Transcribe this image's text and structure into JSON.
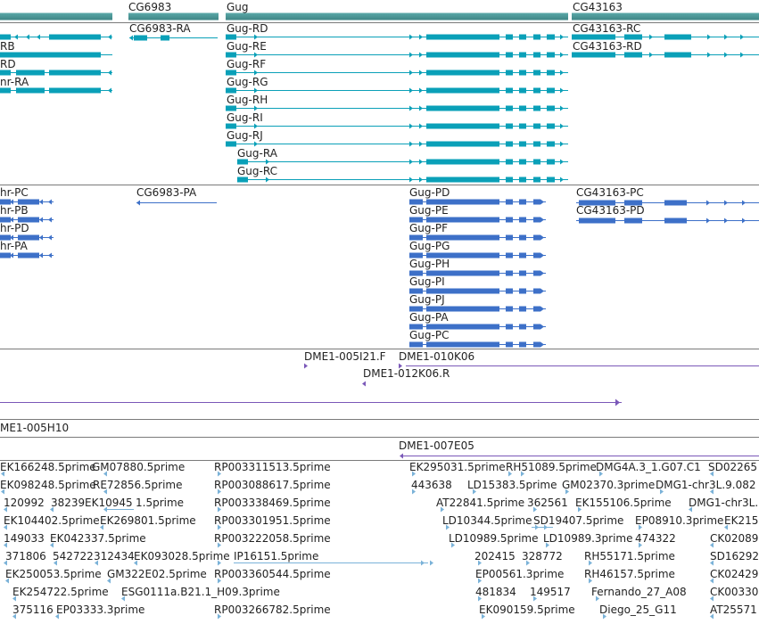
{
  "view": {
    "title": "Genome browser tracks"
  },
  "colors": {
    "geneTeal": "#4f9898",
    "mrna": "#0aa0b8",
    "cds": "#3d70c8",
    "clone": "#7a58b8",
    "est": "#7ab2d8",
    "divider": "#7a7a7a"
  },
  "genes": {
    "cg6983": "CG6983",
    "gug": "Gug",
    "cg43163": "CG43163"
  },
  "transcripts": {
    "left": [
      "RB",
      "RD",
      "nr-RA"
    ],
    "cg6983_ra": "CG6983-RA",
    "gug": [
      "Gug-RD",
      "Gug-RE",
      "Gug-RF",
      "Gug-RG",
      "Gug-RH",
      "Gug-RI",
      "Gug-RJ",
      "Gug-RA",
      "Gug-RC"
    ],
    "cg43163": [
      "CG43163-RC",
      "CG43163-RD"
    ]
  },
  "proteins": {
    "left": [
      "hr-PC",
      "hr-PB",
      "hr-PD",
      "hr-PA"
    ],
    "cg6983_pa": "CG6983-PA",
    "gug": [
      "Gug-PD",
      "Gug-PE",
      "Gug-PF",
      "Gug-PG",
      "Gug-PH",
      "Gug-PI",
      "Gug-PJ",
      "Gug-PA",
      "Gug-PC"
    ],
    "cg43163": [
      "CG43163-PC",
      "CG43163-PD"
    ]
  },
  "clones": {
    "c1": "DME1-005I21.F",
    "c2": "DME1-010K06",
    "c3": "DME1-012K06.R",
    "c4": "ME1-005H10",
    "c5": "DME1-007E05"
  },
  "ests": {
    "row1": [
      "EK166248.5prime",
      "GM07880.5prime",
      "RP003311513.5prime",
      "EK295031.5prime",
      "RH51089.5prime",
      "DMG4A.3_1.G07.C1",
      "SD02265"
    ],
    "row2": [
      "EK098248.5prime",
      "RE72856.5prime",
      "RP003088617.5prime",
      "443638",
      "LD15383.5prime",
      "GM02370.3prime",
      "DMG1-chr3L.9.082"
    ],
    "row3": [
      "120992",
      "38239",
      "EK10945",
      "1.5prime",
      "RP003338469.5prime",
      "AT22841.5prime",
      "362561",
      "EK155106.5prime",
      "DMG1-chr3L."
    ],
    "row4": [
      "EK104402.5prime",
      "EK269801.5prime",
      "RP003301951.5prime",
      "LD10344.5prime",
      "SD19407.5prime",
      "EP08910.3prime",
      "EK215"
    ],
    "row5": [
      "149033",
      "EK042337.5prime",
      "RP003222058.5prime",
      "LD10989.5prime",
      "LD10989.3prime",
      "474322",
      "CK02089"
    ],
    "row6": [
      "371806",
      "542722",
      "312434",
      "EK093028.5prime",
      "IP16151.5prime",
      "202415",
      "328772",
      "RH55171.5prime",
      "SD16292"
    ],
    "row7": [
      "EK250053.5prime",
      "GM322E02.5prime",
      "RP003360544.5prime",
      "EP00561.3prime",
      "RH46157.5prime",
      "CK02429"
    ],
    "row8": [
      "EK254722.5prime",
      "ESG0111a.B21.1_H09.3prime",
      "481834",
      "149517",
      "Fernando_27_A08",
      "CK00330"
    ],
    "row9": [
      "375116",
      "EP03333.3prime",
      "RP003266782.5prime",
      "EK090159.5prime",
      "Diego_25_G11",
      "AT25571"
    ]
  }
}
